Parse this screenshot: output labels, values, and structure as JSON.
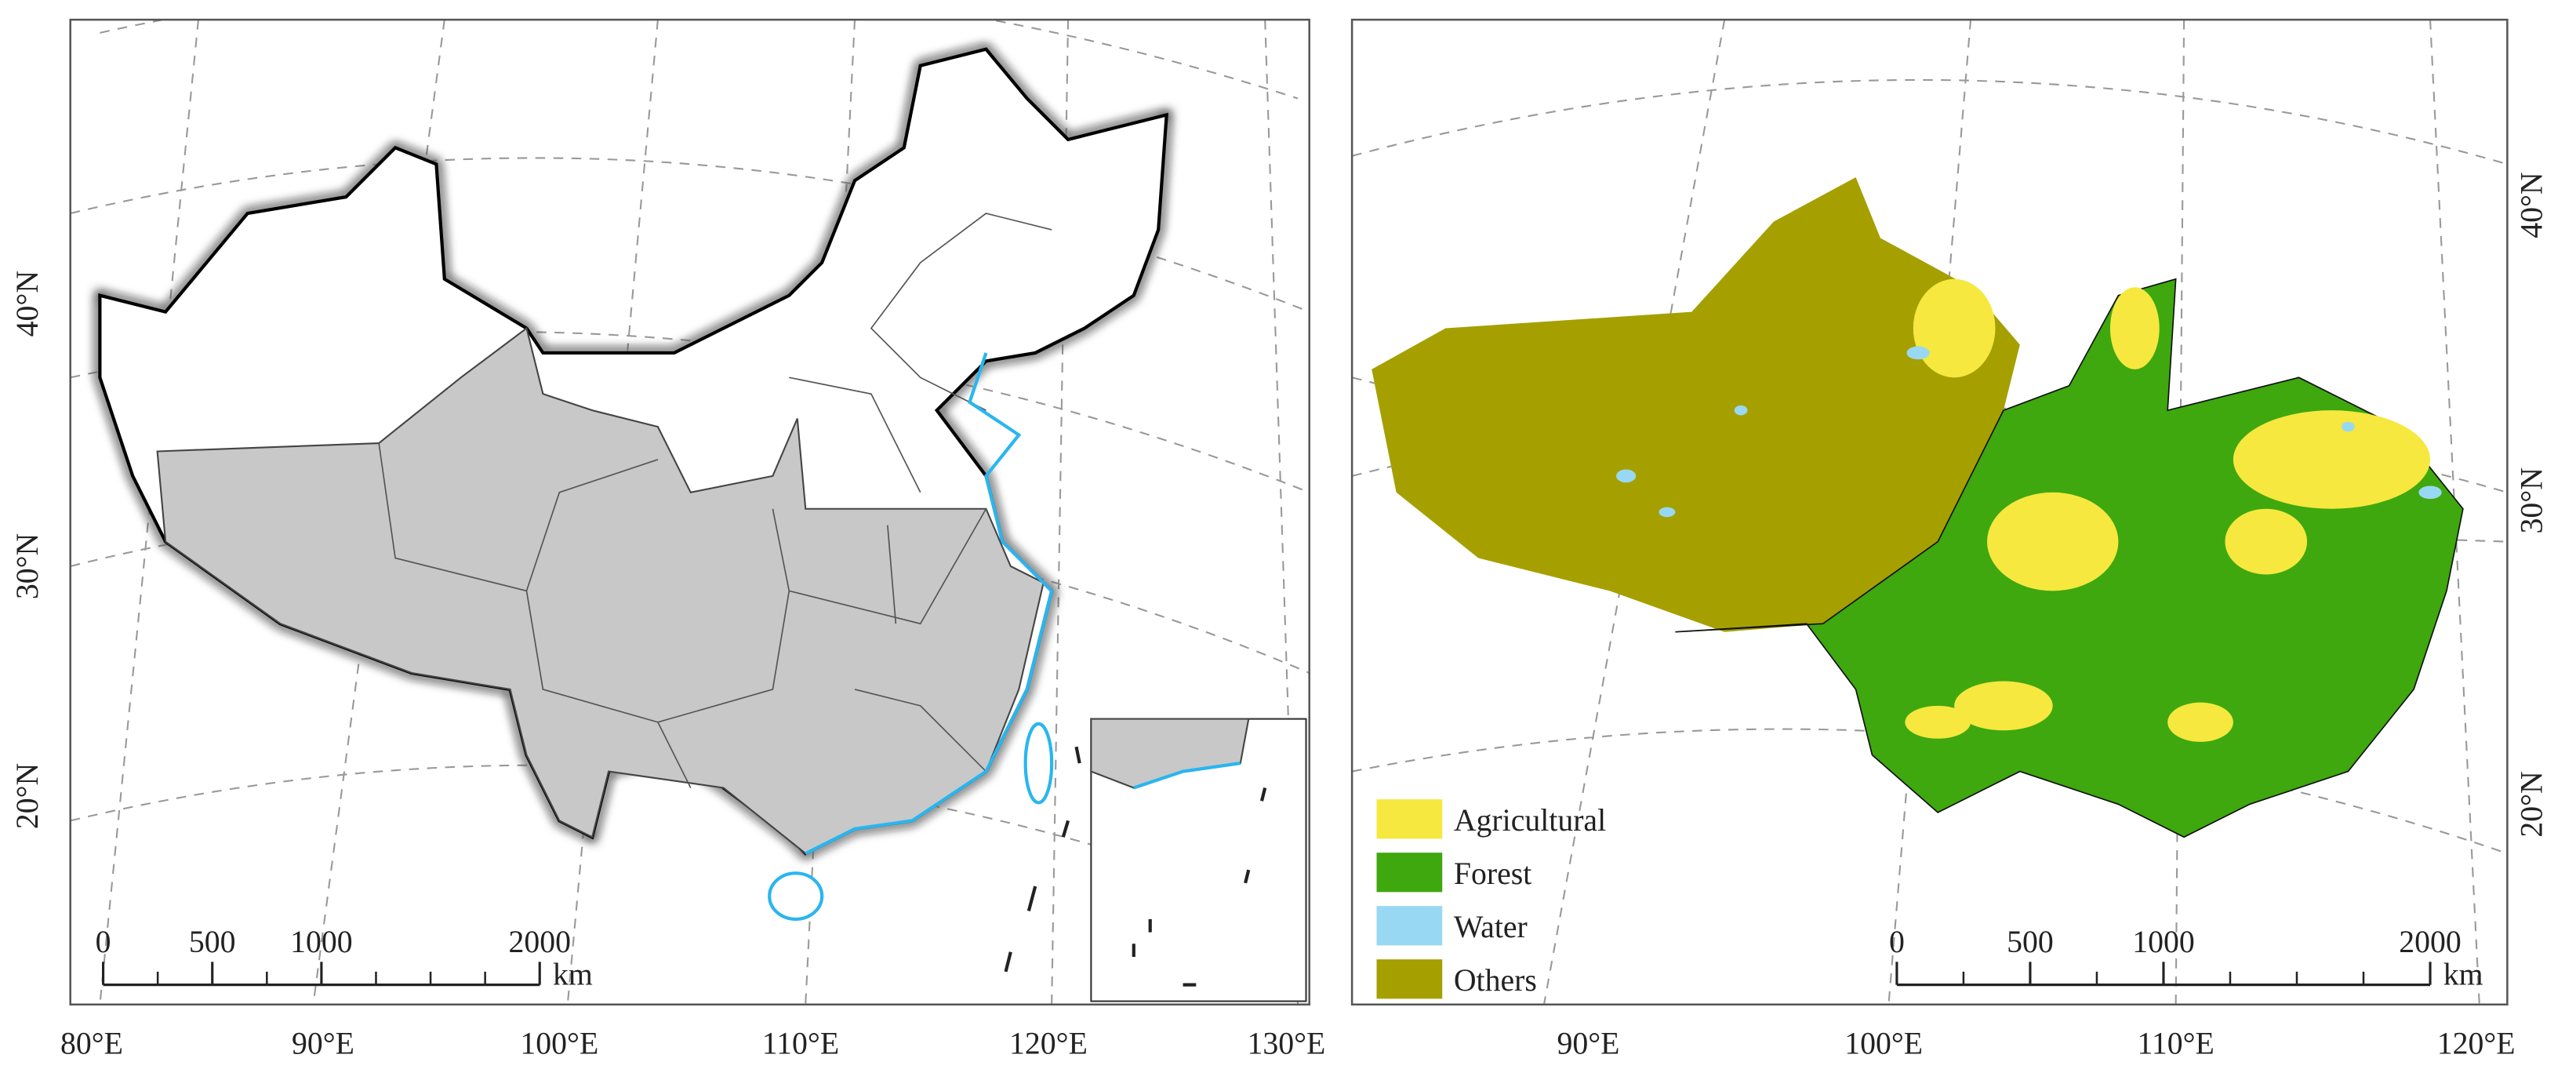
{
  "left_map": {
    "lon_labels": [
      "80°E",
      "90°E",
      "100°E",
      "110°E",
      "120°E",
      "130°E"
    ],
    "lat_labels": [
      "40°N",
      "30°N",
      "20°N"
    ],
    "scale_bar": {
      "ticks": [
        0,
        500,
        1000,
        2000
      ],
      "unit": "km"
    }
  },
  "right_map": {
    "lon_labels": [
      "90°E",
      "100°E",
      "110°E",
      "120°E"
    ],
    "lat_labels": [
      "40°N",
      "30°N",
      "20°N"
    ],
    "legend": [
      {
        "label": "Agricultural",
        "color": "#f6e83e"
      },
      {
        "label": "Forest",
        "color": "#3ea80e"
      },
      {
        "label": "Water",
        "color": "#99d8f2"
      },
      {
        "label": "Others",
        "color": "#a5a000"
      }
    ],
    "scale_bar": {
      "ticks": [
        0,
        500,
        1000,
        2000
      ],
      "unit": "km"
    }
  }
}
